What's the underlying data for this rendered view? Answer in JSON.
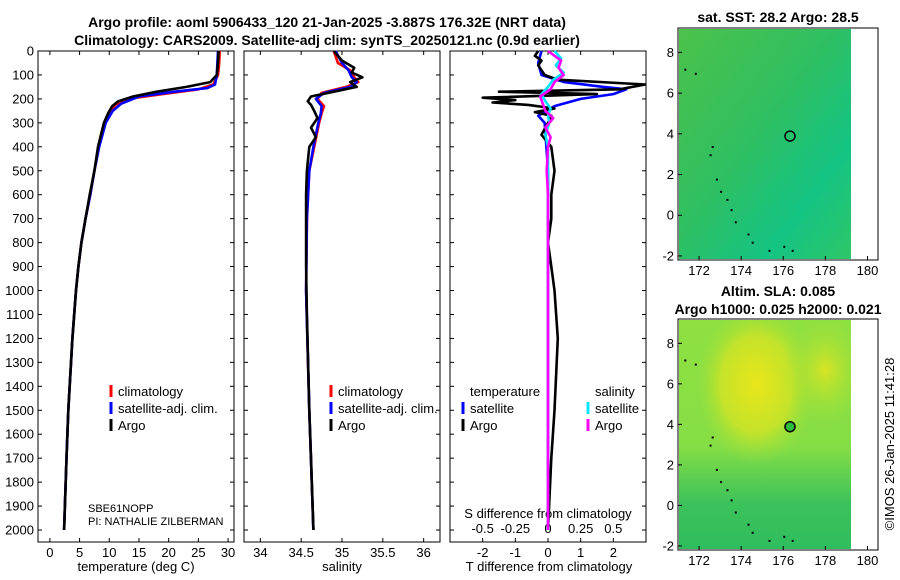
{
  "figure_title": {
    "line1": "Argo profile: aoml 5906433_120 21-Jan-2025 -3.887S 176.32E (NRT data)",
    "line2": "Climatology: CARS2009. Satellite-adj clim: synTS_20250121.nc (0.9d earlier)"
  },
  "colors": {
    "climatology": "#ff0000",
    "satellite": "#0000ff",
    "argo": "#000000",
    "sat_salinity": "#00e5ff",
    "argo_salinity": "#ff00ff"
  },
  "chart_data": [
    {
      "type": "line",
      "panel": "temperature",
      "xlabel": "temperature (deg C)",
      "xlim": [
        -2,
        31
      ],
      "ylim": [
        0,
        2050
      ],
      "xticks": [
        "0",
        "5",
        "10",
        "15",
        "20",
        "25",
        "30"
      ],
      "yticks": [
        "0",
        "100",
        "200",
        "300",
        "400",
        "500",
        "600",
        "700",
        "800",
        "900",
        "1000",
        "1100",
        "1200",
        "1300",
        "1400",
        "1500",
        "1600",
        "1700",
        "1800",
        "1900",
        "2000"
      ],
      "legend": [
        "climatology",
        "satellite-adj. clim.",
        "Argo"
      ],
      "annotation": {
        "sensor": "SBE61NOPP",
        "pi": "PI: NATHALIE ZILBERMAN"
      },
      "series": [
        {
          "name": "climatology",
          "depth": [
            0,
            50,
            100,
            140,
            160,
            180,
            200,
            225,
            250,
            300,
            400,
            500,
            600,
            700,
            800,
            900,
            1000,
            1200,
            1500,
            1700,
            2000
          ],
          "values": [
            28.6,
            28.5,
            28.3,
            27.5,
            25.0,
            19.0,
            13.0,
            11.0,
            10.3,
            9.3,
            8.2,
            7.5,
            6.8,
            6.0,
            5.3,
            4.8,
            4.4,
            3.8,
            3.1,
            2.8,
            2.4
          ]
        },
        {
          "name": "satellite-adj. clim.",
          "depth": [
            0,
            50,
            100,
            140,
            155,
            170,
            190,
            220,
            250,
            300,
            400,
            500,
            600,
            700,
            800,
            900,
            1000,
            1200,
            1500,
            1700,
            2000
          ],
          "values": [
            28.3,
            28.2,
            28.1,
            27.8,
            26.5,
            21.0,
            15.0,
            12.0,
            10.6,
            9.4,
            8.3,
            7.5,
            6.8,
            6.0,
            5.3,
            4.8,
            4.4,
            3.8,
            3.1,
            2.8,
            2.4
          ]
        },
        {
          "name": "Argo",
          "depth": [
            0,
            50,
            100,
            130,
            150,
            170,
            190,
            210,
            230,
            260,
            300,
            400,
            500,
            600,
            700,
            800,
            900,
            1000,
            1200,
            1500,
            1700,
            2000
          ],
          "values": [
            28.4,
            28.3,
            28.1,
            27.0,
            23.0,
            18.0,
            14.0,
            11.5,
            10.5,
            9.8,
            9.1,
            8.1,
            7.5,
            6.7,
            6.0,
            5.3,
            4.8,
            4.4,
            3.8,
            3.1,
            2.8,
            2.4
          ]
        }
      ]
    },
    {
      "type": "line",
      "panel": "salinity",
      "xlabel": "salinity",
      "xlim": [
        33.8,
        36.2
      ],
      "ylim": [
        0,
        2050
      ],
      "xticks": [
        "34",
        "34.5",
        "35",
        "35.5",
        "36"
      ],
      "legend": [
        "climatology",
        "satellite-adj. clim.",
        "Argo"
      ],
      "series": [
        {
          "name": "climatology",
          "depth": [
            0,
            50,
            80,
            110,
            130,
            150,
            175,
            200,
            230,
            260,
            300,
            400,
            500,
            700,
            1000,
            1500,
            2000
          ],
          "values": [
            34.9,
            34.95,
            35.1,
            35.15,
            35.2,
            35.05,
            34.75,
            34.7,
            34.78,
            34.75,
            34.72,
            34.66,
            34.6,
            34.57,
            34.56,
            34.6,
            34.65
          ]
        },
        {
          "name": "satellite-adj. clim.",
          "depth": [
            0,
            50,
            80,
            110,
            130,
            150,
            175,
            200,
            230,
            260,
            300,
            400,
            500,
            700,
            1000,
            1500,
            2000
          ],
          "values": [
            34.92,
            35.0,
            35.08,
            35.12,
            35.18,
            35.1,
            34.78,
            34.68,
            34.75,
            34.74,
            34.71,
            34.65,
            34.6,
            34.57,
            34.56,
            34.6,
            34.65
          ]
        },
        {
          "name": "Argo",
          "depth": [
            0,
            40,
            70,
            90,
            110,
            130,
            150,
            170,
            190,
            210,
            225,
            250,
            280,
            320,
            360,
            400,
            500,
            600,
            700,
            900,
            1100,
            1500,
            1700,
            2000
          ],
          "values": [
            34.9,
            35.0,
            35.15,
            35.12,
            35.25,
            35.1,
            35.18,
            34.9,
            34.62,
            34.58,
            34.62,
            34.66,
            34.7,
            34.62,
            34.68,
            34.6,
            34.57,
            34.56,
            34.56,
            34.56,
            34.57,
            34.6,
            34.62,
            34.65
          ]
        }
      ]
    },
    {
      "type": "line",
      "panel": "difference",
      "xlabel": "T difference from climatology",
      "xlabel_top": "S difference from climatology",
      "xlim": [
        -3,
        3
      ],
      "ylim": [
        0,
        2050
      ],
      "xticks": [
        "-2",
        "-1",
        "0",
        "1",
        "2"
      ],
      "xticks_top": [
        "-0.5",
        "-0.25",
        "0",
        "0.25",
        "0.5"
      ],
      "legend_temperature": {
        "title": "temperature",
        "items": [
          "satellite",
          "Argo"
        ]
      },
      "legend_salinity": {
        "title": "salinity",
        "items": [
          "satellite",
          "Argo"
        ]
      },
      "series": [
        {
          "name": "temperature satellite",
          "depth": [
            0,
            50,
            100,
            130,
            150,
            160,
            180,
            200,
            230,
            270,
            300,
            400,
            500,
            700,
            1000,
            1500,
            2000
          ],
          "values": [
            -0.2,
            -0.3,
            -0.2,
            0.5,
            1.7,
            2.4,
            2.0,
            1.0,
            0.2,
            -0.3,
            -0.1,
            -0.05,
            0.0,
            0.0,
            0.0,
            0.0,
            0.0
          ]
        },
        {
          "name": "temperature Argo",
          "depth": [
            0,
            20,
            40,
            60,
            80,
            100,
            120,
            140,
            160,
            170,
            180,
            195,
            205,
            215,
            225,
            240,
            255,
            270,
            300,
            350,
            400,
            500,
            600,
            700,
            800,
            900,
            1000,
            1200,
            1500,
            1700,
            2000
          ],
          "values": [
            -0.3,
            -0.4,
            -0.2,
            -0.3,
            -0.2,
            -0.1,
            0.3,
            3.0,
            2.2,
            -1.5,
            1.5,
            -2.0,
            -1.0,
            -1.7,
            -0.6,
            0.2,
            -0.4,
            0.1,
            0.0,
            -0.2,
            0.1,
            0.2,
            0.1,
            0.1,
            0.0,
            0.1,
            0.2,
            0.3,
            0.2,
            0.1,
            0.0
          ]
        },
        {
          "name": "salinity satellite",
          "depth": [
            0,
            30,
            60,
            90,
            120,
            150,
            180,
            210,
            240,
            270,
            300,
            350,
            400,
            500,
            700,
            1000,
            1500,
            2000
          ],
          "values": [
            0.05,
            0.1,
            0.06,
            0.12,
            0.04,
            0.0,
            -0.05,
            -0.02,
            0.02,
            0.0,
            0.01,
            -0.02,
            0.0,
            0.0,
            0.0,
            0.0,
            0.0,
            0.0
          ]
        },
        {
          "name": "salinity Argo",
          "depth": [
            0,
            40,
            70,
            100,
            130,
            160,
            190,
            220,
            250,
            280,
            320,
            360,
            400,
            500,
            600,
            700,
            900,
            1100,
            1500,
            2000
          ],
          "values": [
            0.0,
            0.1,
            0.08,
            0.12,
            0.05,
            0.02,
            -0.06,
            -0.04,
            -0.02,
            0.04,
            -0.02,
            0.02,
            0.0,
            -0.01,
            0.0,
            0.0,
            0.0,
            0.0,
            0.0,
            0.0
          ]
        }
      ]
    },
    {
      "type": "heatmap",
      "panel": "sst_map",
      "title": "sat. SST: 28.2 Argo: 28.5",
      "xlim": [
        171,
        180.5
      ],
      "ylim": [
        -2.2,
        9.2
      ],
      "xticks": [
        "172",
        "174",
        "176",
        "178",
        "180"
      ],
      "yticks": [
        "-2",
        "0",
        "2",
        "4",
        "6",
        "8"
      ],
      "marker": {
        "lon": 176.32,
        "lat": 3.887
      }
    },
    {
      "type": "heatmap",
      "panel": "sla_map",
      "title_line1": "Altim. SLA: 0.085",
      "title_line2": "Argo h1000: 0.025 h2000: 0.021",
      "xlim": [
        171,
        180.5
      ],
      "ylim": [
        -2.2,
        9.2
      ],
      "xticks": [
        "172",
        "174",
        "176",
        "178",
        "180"
      ],
      "yticks": [
        "-2",
        "0",
        "2",
        "4",
        "6",
        "8"
      ],
      "marker": {
        "lon": 176.32,
        "lat": 3.887
      }
    }
  ],
  "credit": "©IMOS 26-Jan-2025 11:41:28"
}
